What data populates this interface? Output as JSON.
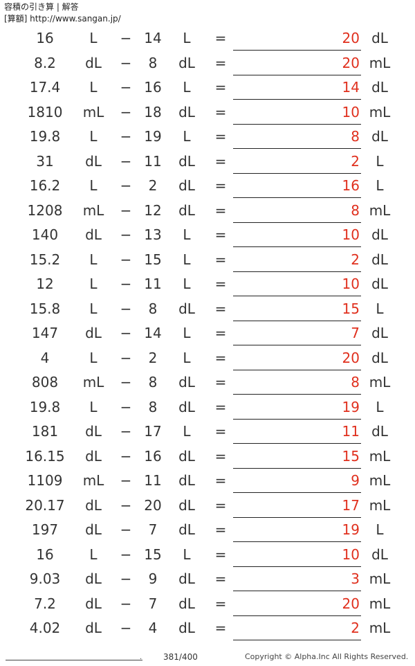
{
  "header": {
    "title": "容積の引き算 | 解答",
    "subtitle": "[算額] http://www.sangan.jp/"
  },
  "rows": [
    {
      "a": "16",
      "u1": "L",
      "op": "−",
      "b": "14",
      "u2": "L",
      "eq": "=",
      "ans": "20",
      "u3": "dL"
    },
    {
      "a": "8.2",
      "u1": "dL",
      "op": "−",
      "b": "8",
      "u2": "dL",
      "eq": "=",
      "ans": "20",
      "u3": "mL"
    },
    {
      "a": "17.4",
      "u1": "L",
      "op": "−",
      "b": "16",
      "u2": "L",
      "eq": "=",
      "ans": "14",
      "u3": "dL"
    },
    {
      "a": "1810",
      "u1": "mL",
      "op": "−",
      "b": "18",
      "u2": "dL",
      "eq": "=",
      "ans": "10",
      "u3": "mL"
    },
    {
      "a": "19.8",
      "u1": "L",
      "op": "−",
      "b": "19",
      "u2": "L",
      "eq": "=",
      "ans": "8",
      "u3": "dL"
    },
    {
      "a": "31",
      "u1": "dL",
      "op": "−",
      "b": "11",
      "u2": "dL",
      "eq": "=",
      "ans": "2",
      "u3": "L"
    },
    {
      "a": "16.2",
      "u1": "L",
      "op": "−",
      "b": "2",
      "u2": "dL",
      "eq": "=",
      "ans": "16",
      "u3": "L"
    },
    {
      "a": "1208",
      "u1": "mL",
      "op": "−",
      "b": "12",
      "u2": "dL",
      "eq": "=",
      "ans": "8",
      "u3": "mL"
    },
    {
      "a": "140",
      "u1": "dL",
      "op": "−",
      "b": "13",
      "u2": "L",
      "eq": "=",
      "ans": "10",
      "u3": "dL"
    },
    {
      "a": "15.2",
      "u1": "L",
      "op": "−",
      "b": "15",
      "u2": "L",
      "eq": "=",
      "ans": "2",
      "u3": "dL"
    },
    {
      "a": "12",
      "u1": "L",
      "op": "−",
      "b": "11",
      "u2": "L",
      "eq": "=",
      "ans": "10",
      "u3": "dL"
    },
    {
      "a": "15.8",
      "u1": "L",
      "op": "−",
      "b": "8",
      "u2": "dL",
      "eq": "=",
      "ans": "15",
      "u3": "L"
    },
    {
      "a": "147",
      "u1": "dL",
      "op": "−",
      "b": "14",
      "u2": "L",
      "eq": "=",
      "ans": "7",
      "u3": "dL"
    },
    {
      "a": "4",
      "u1": "L",
      "op": "−",
      "b": "2",
      "u2": "L",
      "eq": "=",
      "ans": "20",
      "u3": "dL"
    },
    {
      "a": "808",
      "u1": "mL",
      "op": "−",
      "b": "8",
      "u2": "dL",
      "eq": "=",
      "ans": "8",
      "u3": "mL"
    },
    {
      "a": "19.8",
      "u1": "L",
      "op": "−",
      "b": "8",
      "u2": "dL",
      "eq": "=",
      "ans": "19",
      "u3": "L"
    },
    {
      "a": "181",
      "u1": "dL",
      "op": "−",
      "b": "17",
      "u2": "L",
      "eq": "=",
      "ans": "11",
      "u3": "dL"
    },
    {
      "a": "16.15",
      "u1": "dL",
      "op": "−",
      "b": "16",
      "u2": "dL",
      "eq": "=",
      "ans": "15",
      "u3": "mL"
    },
    {
      "a": "1109",
      "u1": "mL",
      "op": "−",
      "b": "11",
      "u2": "dL",
      "eq": "=",
      "ans": "9",
      "u3": "mL"
    },
    {
      "a": "20.17",
      "u1": "dL",
      "op": "−",
      "b": "20",
      "u2": "dL",
      "eq": "=",
      "ans": "17",
      "u3": "mL"
    },
    {
      "a": "197",
      "u1": "dL",
      "op": "−",
      "b": "7",
      "u2": "dL",
      "eq": "=",
      "ans": "19",
      "u3": "L"
    },
    {
      "a": "16",
      "u1": "L",
      "op": "−",
      "b": "15",
      "u2": "L",
      "eq": "=",
      "ans": "10",
      "u3": "dL"
    },
    {
      "a": "9.03",
      "u1": "dL",
      "op": "−",
      "b": "9",
      "u2": "dL",
      "eq": "=",
      "ans": "3",
      "u3": "mL"
    },
    {
      "a": "7.2",
      "u1": "dL",
      "op": "−",
      "b": "7",
      "u2": "dL",
      "eq": "=",
      "ans": "20",
      "u3": "mL"
    },
    {
      "a": "4.02",
      "u1": "dL",
      "op": "−",
      "b": "4",
      "u2": "dL",
      "eq": "=",
      "ans": "2",
      "u3": "mL"
    }
  ],
  "footer": {
    "dot": ".",
    "page": "381/400",
    "copyright": "Copyright © Alpha.Inc All Rights Reserved."
  },
  "colors": {
    "answer": "#e0301e",
    "text": "#333333"
  }
}
